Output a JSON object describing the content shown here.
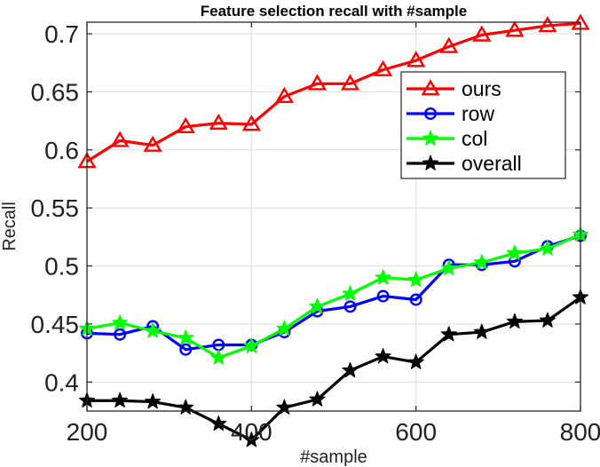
{
  "chart_data": {
    "type": "line",
    "title": "Feature selection recall with #sample",
    "xlabel": "#sample",
    "ylabel": "Recall",
    "xlim": [
      200,
      800
    ],
    "ylim": [
      0.375,
      0.71
    ],
    "xticks": [
      200,
      400,
      600,
      800
    ],
    "yticks": [
      0.4,
      0.45,
      0.5,
      0.55,
      0.6,
      0.65,
      0.7
    ],
    "ytick_labels": [
      "0.4",
      "0.45",
      "0.5",
      "0.55",
      "0.6",
      "0.65",
      "0.7"
    ],
    "grid": true,
    "legend_position": "top-right",
    "x": [
      200,
      240,
      280,
      320,
      360,
      400,
      440,
      480,
      520,
      560,
      600,
      640,
      680,
      720,
      760,
      800
    ],
    "series": [
      {
        "name": "ours",
        "color": "#ff0000",
        "marker": "triangle",
        "values": [
          0.59,
          0.608,
          0.604,
          0.62,
          0.623,
          0.622,
          0.646,
          0.657,
          0.657,
          0.669,
          0.677,
          0.689,
          0.699,
          0.703,
          0.707,
          0.709
        ]
      },
      {
        "name": "row",
        "color": "#0000ff",
        "marker": "circle",
        "values": [
          0.442,
          0.441,
          0.448,
          0.428,
          0.432,
          0.432,
          0.443,
          0.461,
          0.465,
          0.474,
          0.471,
          0.501,
          0.501,
          0.504,
          0.517,
          0.526
        ]
      },
      {
        "name": "col",
        "color": "#00ff00",
        "marker": "star",
        "values": [
          0.446,
          0.451,
          0.444,
          0.438,
          0.421,
          0.431,
          0.446,
          0.465,
          0.476,
          0.49,
          0.488,
          0.498,
          0.503,
          0.511,
          0.515,
          0.527
        ]
      },
      {
        "name": "overall",
        "color": "#000000",
        "marker": "star",
        "values": [
          0.384,
          0.384,
          0.383,
          0.378,
          0.364,
          0.35,
          0.378,
          0.385,
          0.41,
          0.422,
          0.417,
          0.441,
          0.443,
          0.452,
          0.453,
          0.473
        ]
      }
    ]
  }
}
